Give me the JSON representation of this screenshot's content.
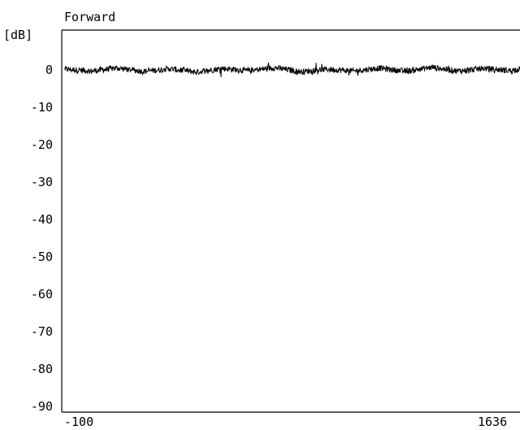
{
  "chart_data": {
    "type": "line",
    "title": "Forward",
    "ylabel": "[dB]",
    "xlabel": "",
    "ylim": [
      -90,
      0
    ],
    "xlim": [
      -100,
      1636
    ],
    "grid": false,
    "x_tick_labels": [
      "-100",
      "1636"
    ],
    "y_tick_labels": [
      "0",
      "-10",
      "-20",
      "-30",
      "-40",
      "-50",
      "-60",
      "-70",
      "-80",
      "-90"
    ],
    "series": [
      {
        "color": "#000000",
        "x": [
          -100,
          0,
          100,
          200,
          300,
          400,
          500,
          600,
          700,
          800,
          900,
          1000,
          1100,
          1200,
          1300,
          1400,
          1500,
          1600,
          1636
        ],
        "y": [
          0.2,
          -0.3,
          0.5,
          -0.4,
          0.3,
          -0.6,
          0.4,
          -0.2,
          0.6,
          -0.5,
          0.2,
          -0.3,
          0.5,
          -0.4,
          0.7,
          -0.3,
          0.4,
          -0.2,
          0.3
        ]
      }
    ]
  },
  "colors": {
    "background": "#ffffff",
    "axis": "#000000",
    "trace": "#000000"
  }
}
